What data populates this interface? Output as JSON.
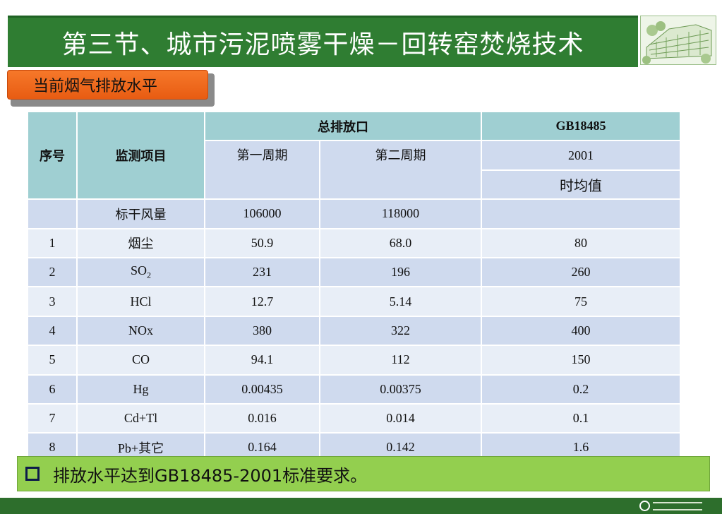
{
  "header": {
    "title": "第三节、城市污泥喷雾干燥－回转窑焚烧技术",
    "logo_icon": "campus-building-illustration"
  },
  "section": {
    "label": "当前烟气排放水平"
  },
  "table": {
    "col_index": "序号",
    "col_item": "监测项目",
    "group_outlet": "总排放口",
    "group_standard": "GB18485",
    "period1": "第一周期",
    "period2": "第二周期",
    "standard_year": "2001",
    "standard_basis": "时均值",
    "flow_row": {
      "index": "",
      "item": "标干风量",
      "p1": "106000",
      "p2": "118000",
      "std": ""
    },
    "rows": [
      {
        "index": "1",
        "item": "烟尘",
        "p1": "50.9",
        "p2": "68.0",
        "std": "80"
      },
      {
        "index": "2",
        "item": "SO",
        "item_sub": "2",
        "p1": "231",
        "p2": "196",
        "std": "260"
      },
      {
        "index": "3",
        "item": "HCl",
        "p1": "12.7",
        "p2": "5.14",
        "std": "75"
      },
      {
        "index": "4",
        "item": "NOx",
        "p1": "380",
        "p2": "322",
        "std": "400"
      },
      {
        "index": "5",
        "item": "CO",
        "p1": "94.1",
        "p2": "112",
        "std": "150"
      },
      {
        "index": "6",
        "item": "Hg",
        "p1": "0.00435",
        "p2": "0.00375",
        "std": "0.2"
      },
      {
        "index": "7",
        "item": "Cd+Tl",
        "p1": "0.016",
        "p2": "0.014",
        "std": "0.1"
      },
      {
        "index": "8",
        "item": "Pb+其它",
        "p1": "0.164",
        "p2": "0.142",
        "std": "1.6"
      }
    ]
  },
  "note": {
    "text": "排放水平达到GB18485-2001标准要求。",
    "bullet_icon": "square-bullet-icon"
  },
  "footer": {
    "logo_icon": "university-emblem-logo"
  },
  "colors": {
    "title_bar": "#2f7d32",
    "tab": "#f26b1d",
    "header_cell": "#9fcfd2",
    "header_text": "#e01b1b",
    "row_dark": "#cfdaee",
    "row_light": "#e8eef7",
    "note_bar": "#93cf4f",
    "footer_bar": "#2d6e2c"
  }
}
